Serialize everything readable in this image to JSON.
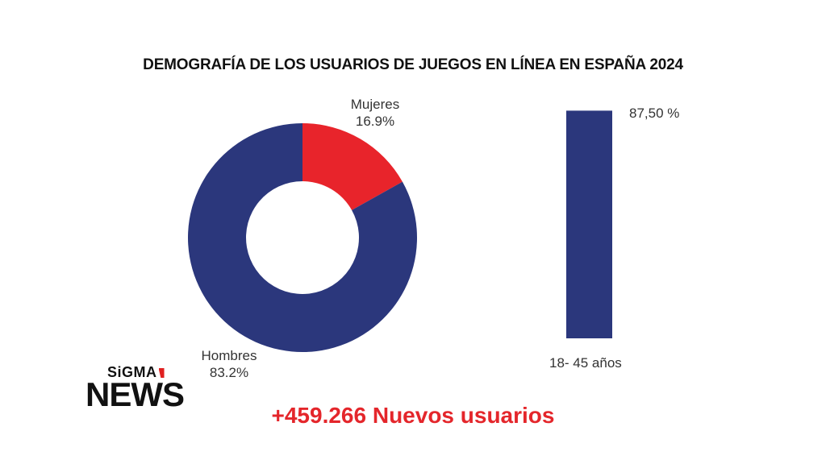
{
  "chart_data": [
    {
      "type": "pie",
      "title": "DEMOGRAFÍA DE LOS USUARIOS DE JUEGOS EN LÍNEA EN ESPAÑA 2024",
      "slices": [
        {
          "name": "Mujeres",
          "value": 16.9,
          "label": "16.9%",
          "color": "#e8242b"
        },
        {
          "name": "Hombres",
          "value": 83.2,
          "label": "83.2%",
          "color": "#2b377c"
        }
      ]
    },
    {
      "type": "bar",
      "categories": [
        "18- 45 años"
      ],
      "values": [
        87.5
      ],
      "value_label": "87,50 %",
      "color": "#2b377c",
      "ylim": [
        0,
        100
      ]
    }
  ],
  "logo": {
    "top": "SiGMA",
    "bottom": "NEWS"
  },
  "footer": "+459.266 Nuevos usuarios"
}
